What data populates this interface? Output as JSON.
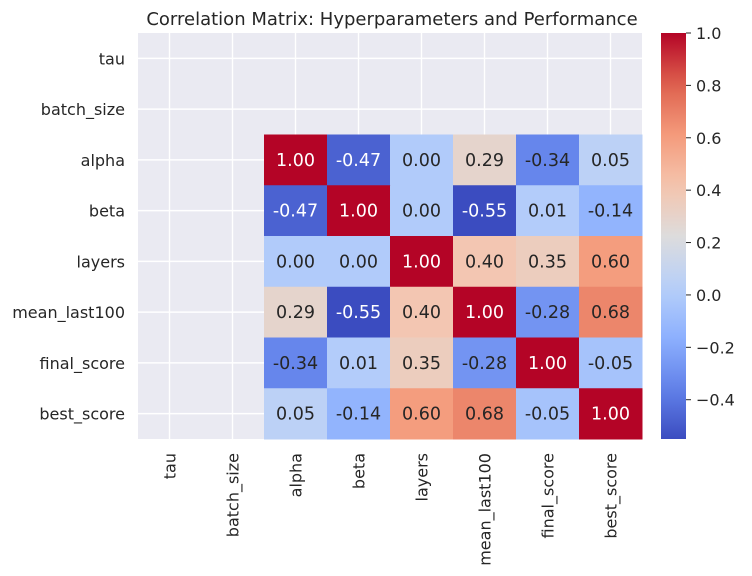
{
  "chart_data": {
    "type": "heatmap",
    "title": "Correlation Matrix: Hyperparameters and Performance",
    "labels": [
      "tau",
      "batch_size",
      "alpha",
      "beta",
      "layers",
      "mean_last100",
      "final_score",
      "best_score"
    ],
    "matrix": [
      [
        null,
        null,
        null,
        null,
        null,
        null,
        null,
        null
      ],
      [
        null,
        null,
        null,
        null,
        null,
        null,
        null,
        null
      ],
      [
        null,
        null,
        1.0,
        -0.47,
        0.0,
        0.29,
        -0.34,
        0.05
      ],
      [
        null,
        null,
        -0.47,
        1.0,
        0.0,
        -0.55,
        0.01,
        -0.14
      ],
      [
        null,
        null,
        0.0,
        0.0,
        1.0,
        0.4,
        0.35,
        0.6
      ],
      [
        null,
        null,
        0.29,
        -0.55,
        0.4,
        1.0,
        -0.28,
        0.68
      ],
      [
        null,
        null,
        -0.34,
        0.01,
        0.35,
        -0.28,
        1.0,
        -0.05
      ],
      [
        null,
        null,
        0.05,
        -0.14,
        0.6,
        0.68,
        -0.05,
        1.0
      ]
    ],
    "value_format": "0.00",
    "colormap": "coolwarm",
    "color_range": [
      -0.55,
      1.0
    ],
    "colorbar_ticks": [
      "1.0",
      "0.8",
      "0.6",
      "0.4",
      "0.2",
      "0.0",
      "−0.2",
      "−0.4"
    ],
    "colorbar_tick_values": [
      1.0,
      0.8,
      0.6,
      0.4,
      0.2,
      0.0,
      -0.2,
      -0.4
    ],
    "missing_color": "#eaeaf2",
    "grid": true,
    "legend": "colorbar-right"
  }
}
